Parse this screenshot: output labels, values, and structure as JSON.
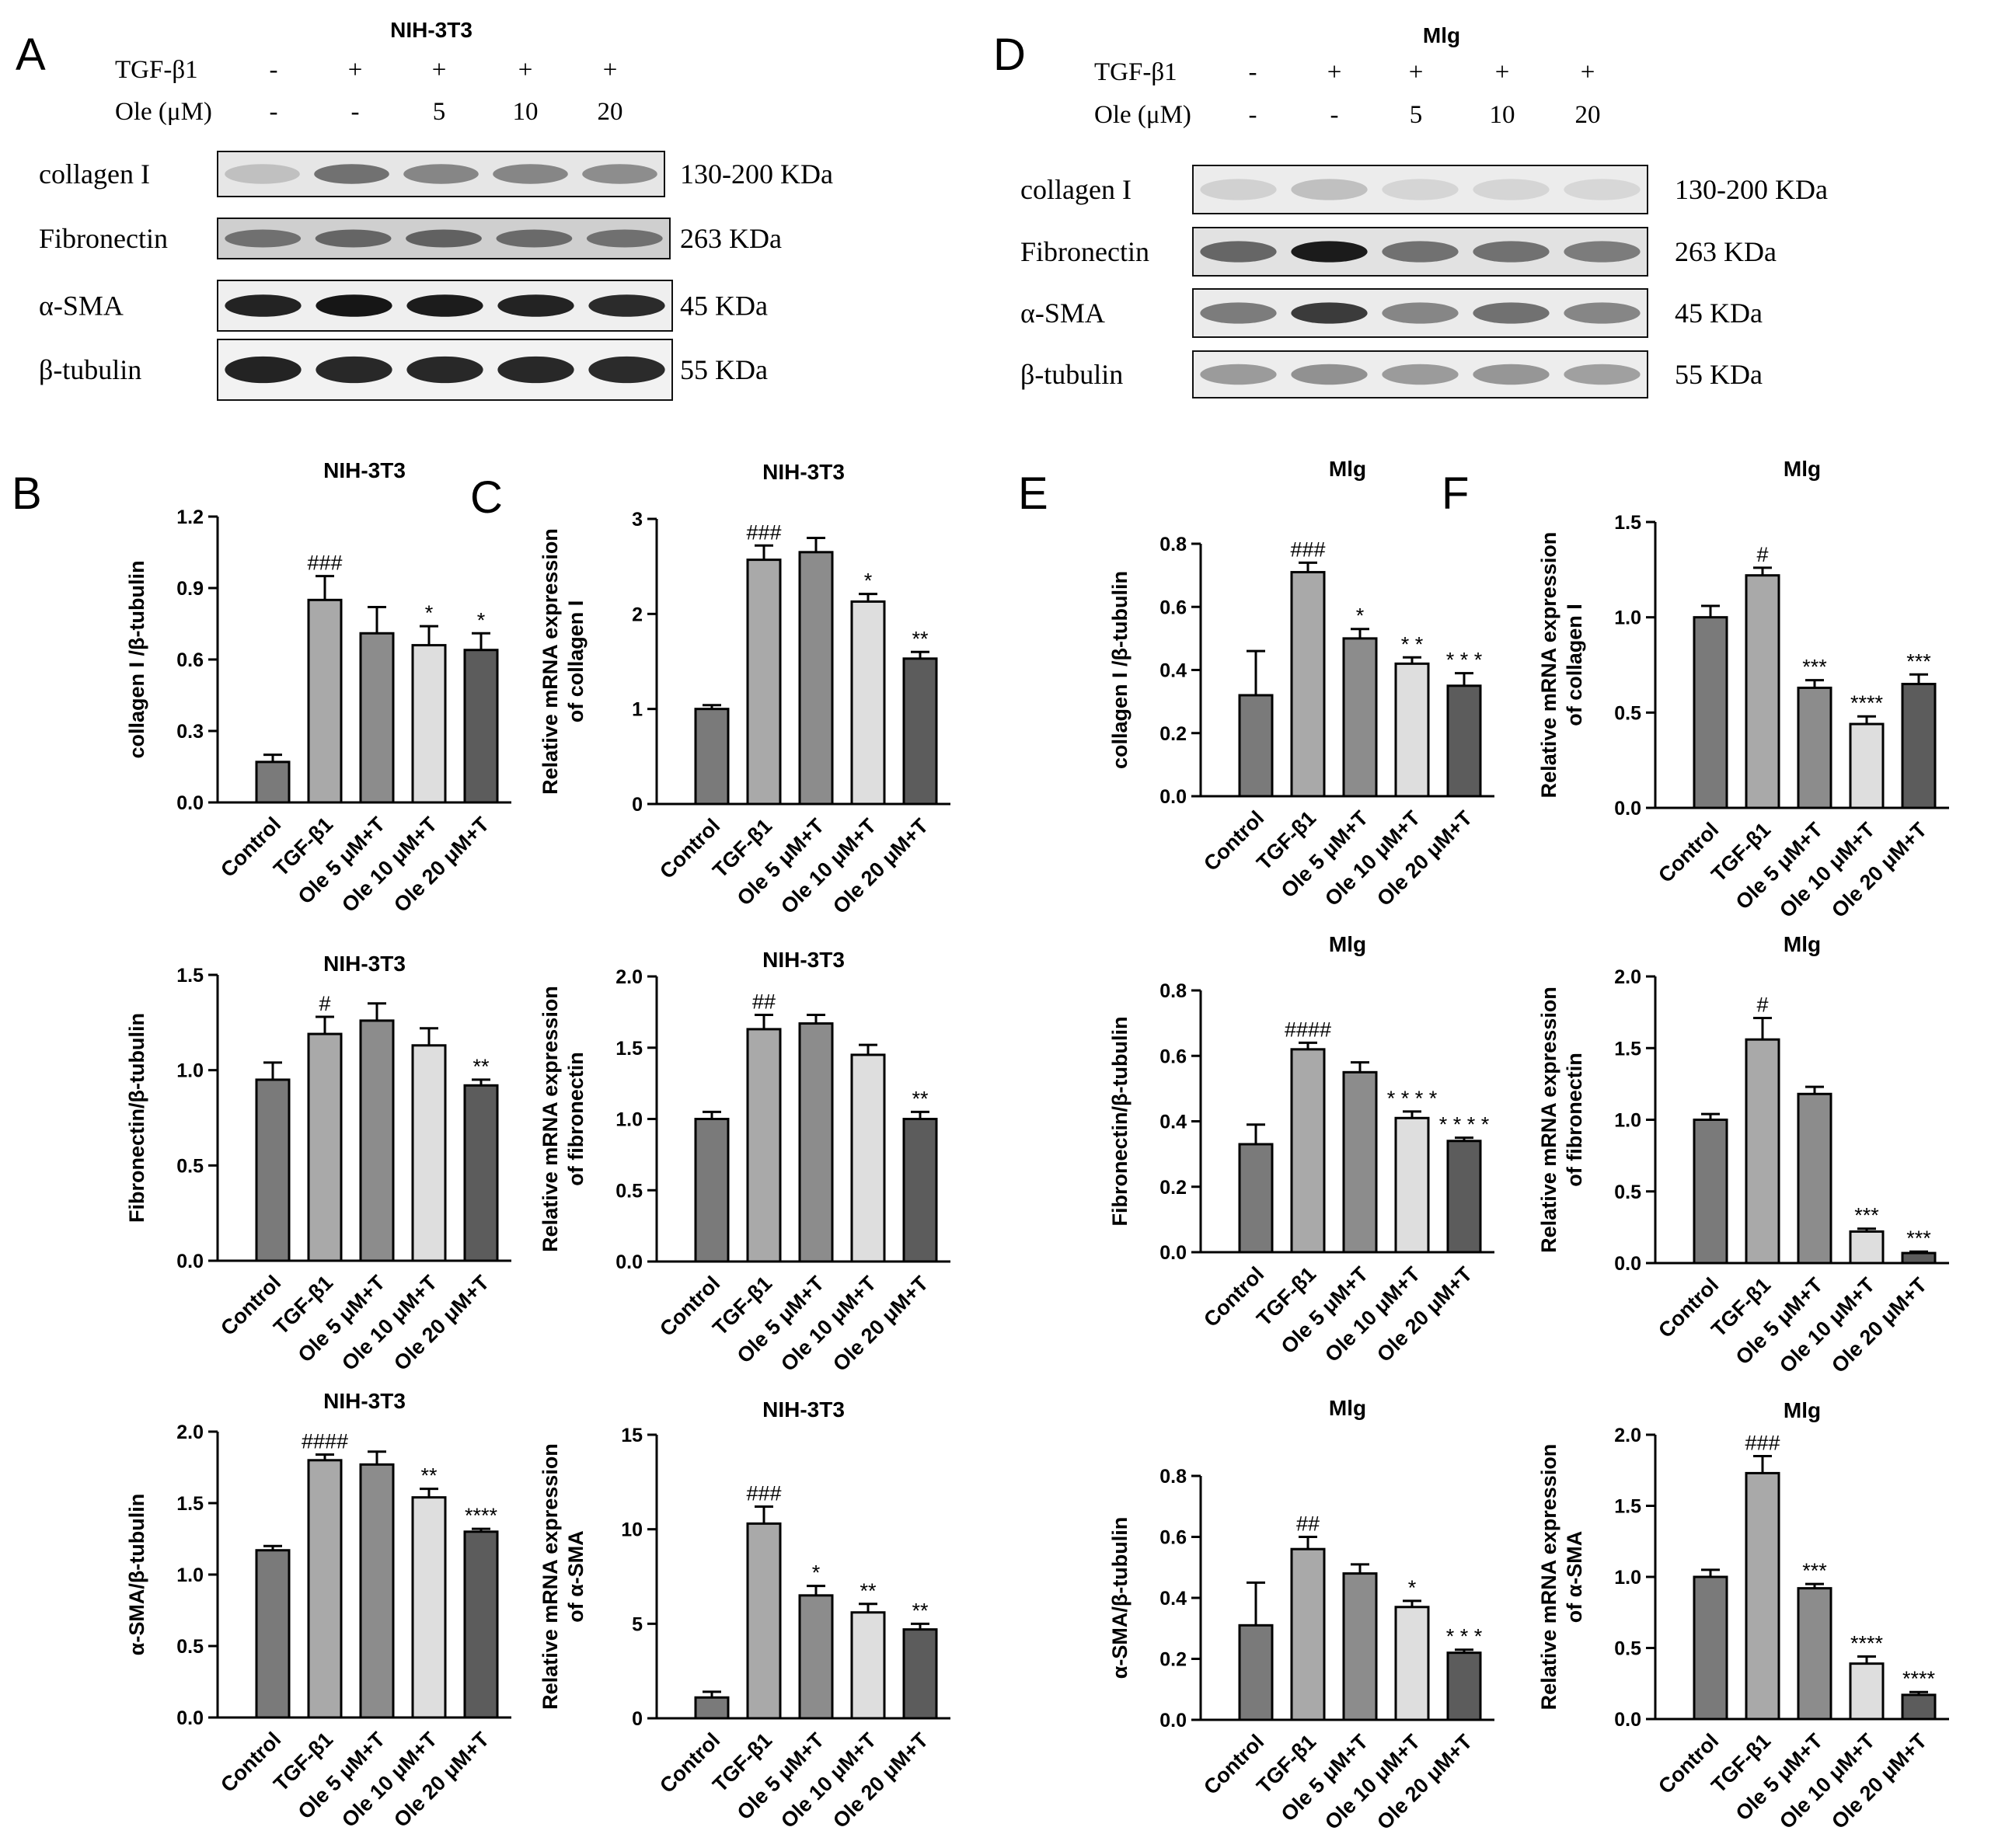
{
  "figure": {
    "panel_letters": [
      "A",
      "D",
      "B",
      "C",
      "E",
      "F"
    ]
  },
  "western_blots": [
    {
      "letter": "A",
      "title": "NIH-3T3",
      "treatment_rows": [
        {
          "label": "TGF-β1",
          "values": [
            "-",
            "+",
            "+",
            "+",
            "+"
          ]
        },
        {
          "label": "Ole (μM)",
          "values": [
            "-",
            "-",
            "5",
            "10",
            "20"
          ]
        }
      ],
      "rows": [
        {
          "protein": "collagen I",
          "size": "130-200 KDa",
          "intensity": [
            0.18,
            0.55,
            0.45,
            0.45,
            0.42
          ],
          "background": "#e6e6e6"
        },
        {
          "protein": "Fibronectin",
          "size": "263 KDa",
          "intensity": [
            0.55,
            0.6,
            0.62,
            0.58,
            0.55
          ],
          "background": "#cfcfcf"
        },
        {
          "protein": "α-SMA",
          "size": "45 KDa",
          "intensity": [
            0.92,
            0.98,
            0.95,
            0.92,
            0.88
          ],
          "background": "#efefef"
        },
        {
          "protein": "β-tubulin",
          "size": "55 KDa",
          "intensity": [
            0.92,
            0.9,
            0.9,
            0.9,
            0.88
          ],
          "background": "#f2f2f2"
        }
      ]
    },
    {
      "letter": "D",
      "title": "Mlg",
      "treatment_rows": [
        {
          "label": "TGF-β1",
          "values": [
            "-",
            "+",
            "+",
            "+",
            "+"
          ]
        },
        {
          "label": "Ole (μM)",
          "values": [
            "-",
            "-",
            "5",
            "10",
            "20"
          ]
        }
      ],
      "rows": [
        {
          "protein": "collagen I",
          "size": "130-200 KDa",
          "intensity": [
            0.1,
            0.18,
            0.08,
            0.08,
            0.07
          ],
          "background": "#ececec"
        },
        {
          "protein": "Fibronectin",
          "size": "263 KDa",
          "intensity": [
            0.6,
            0.95,
            0.55,
            0.55,
            0.5
          ],
          "background": "#e2e2e2"
        },
        {
          "protein": "α-SMA",
          "size": "45 KDa",
          "intensity": [
            0.5,
            0.8,
            0.45,
            0.55,
            0.45
          ],
          "background": "#ebebeb"
        },
        {
          "protein": "β-tubulin",
          "size": "55 KDa",
          "intensity": [
            0.35,
            0.4,
            0.35,
            0.38,
            0.33
          ],
          "background": "#ededed"
        }
      ]
    }
  ],
  "bar_colors": [
    "#7a7a7a",
    "#a9a9a9",
    "#8c8c8c",
    "#dedede",
    "#5c5c5c"
  ],
  "chart_data": [
    {
      "type": "bar",
      "panel_letter": "B",
      "title": "NIH-3T3",
      "ylabel": [
        "collagen I /β-tubulin"
      ],
      "categories": [
        "Control",
        "TGF-β1",
        "Ole 5 μM+T",
        "Ole 10 μM+T",
        "Ole 20 μM+T"
      ],
      "values": [
        0.17,
        0.85,
        0.71,
        0.66,
        0.64
      ],
      "errors": [
        0.03,
        0.1,
        0.11,
        0.08,
        0.07
      ],
      "annotations": [
        "",
        "###",
        "",
        "*",
        "*"
      ],
      "ylim": [
        0,
        1.2
      ],
      "yticks": [
        "0.0",
        "0.3",
        "0.6",
        "0.9",
        "1.2"
      ]
    },
    {
      "type": "bar",
      "panel_letter": "C",
      "title": "NIH-3T3",
      "ylabel": [
        "Relative mRNA expression",
        "of collagen I"
      ],
      "categories": [
        "Control",
        "TGF-β1",
        "Ole 5 μM+T",
        "Ole 10 μM+T",
        "Ole 20 μM+T"
      ],
      "values": [
        1.0,
        2.57,
        2.65,
        2.13,
        1.53
      ],
      "errors": [
        0.04,
        0.15,
        0.15,
        0.08,
        0.07
      ],
      "annotations": [
        "",
        "###",
        "",
        "*",
        "**"
      ],
      "ylim": [
        0,
        3
      ],
      "yticks": [
        "0",
        "1",
        "2",
        "3"
      ]
    },
    {
      "type": "bar",
      "panel_letter": "E",
      "title": "Mlg",
      "ylabel": [
        "collagen I /β-tubulin"
      ],
      "categories": [
        "Control",
        "TGF-β1",
        "Ole 5 μM+T",
        "Ole 10 μM+T",
        "Ole 20 μM+T"
      ],
      "values": [
        0.32,
        0.71,
        0.5,
        0.42,
        0.35
      ],
      "errors": [
        0.14,
        0.03,
        0.03,
        0.02,
        0.04
      ],
      "annotations": [
        "",
        "###",
        "*",
        "* *",
        "* * *"
      ],
      "ylim": [
        0,
        0.8
      ],
      "yticks": [
        "0.0",
        "0.2",
        "0.4",
        "0.6",
        "0.8"
      ]
    },
    {
      "type": "bar",
      "panel_letter": "F",
      "title": "Mlg",
      "ylabel": [
        "Relative mRNA expression",
        "of collagen I"
      ],
      "categories": [
        "Control",
        "TGF-β1",
        "Ole 5 μM+T",
        "Ole 10 μM+T",
        "Ole 20 μM+T"
      ],
      "values": [
        1.0,
        1.22,
        0.63,
        0.44,
        0.65
      ],
      "errors": [
        0.06,
        0.04,
        0.04,
        0.04,
        0.05
      ],
      "annotations": [
        "",
        "#",
        "***",
        "****",
        "***"
      ],
      "ylim": [
        0,
        1.5
      ],
      "yticks": [
        "0.0",
        "0.5",
        "1.0",
        "1.5"
      ]
    },
    {
      "type": "bar",
      "panel_letter": "",
      "title": "NIH-3T3",
      "ylabel": [
        "Fibronectin/β-tubulin"
      ],
      "categories": [
        "Control",
        "TGF-β1",
        "Ole 5 μM+T",
        "Ole 10 μM+T",
        "Ole 20 μM+T"
      ],
      "values": [
        0.95,
        1.19,
        1.26,
        1.13,
        0.92
      ],
      "errors": [
        0.09,
        0.09,
        0.09,
        0.09,
        0.03
      ],
      "annotations": [
        "",
        "#",
        "",
        "",
        "**"
      ],
      "ylim": [
        0,
        1.5
      ],
      "yticks": [
        "0.0",
        "0.5",
        "1.0",
        "1.5"
      ]
    },
    {
      "type": "bar",
      "panel_letter": "",
      "title": "NIH-3T3",
      "ylabel": [
        "Relative mRNA expression",
        "of fibronectin"
      ],
      "categories": [
        "Control",
        "TGF-β1",
        "Ole 5 μM+T",
        "Ole 10 μM+T",
        "Ole 20 μM+T"
      ],
      "values": [
        1.0,
        1.63,
        1.67,
        1.45,
        1.0
      ],
      "errors": [
        0.05,
        0.1,
        0.06,
        0.07,
        0.05
      ],
      "annotations": [
        "",
        "##",
        "",
        "",
        "**"
      ],
      "ylim": [
        0,
        2.0
      ],
      "yticks": [
        "0.0",
        "0.5",
        "1.0",
        "1.5",
        "2.0"
      ]
    },
    {
      "type": "bar",
      "panel_letter": "",
      "title": "Mlg",
      "ylabel": [
        "Fibronectin/β-tubulin"
      ],
      "categories": [
        "Control",
        "TGF-β1",
        "Ole 5 μM+T",
        "Ole 10 μM+T",
        "Ole 20 μM+T"
      ],
      "values": [
        0.33,
        0.62,
        0.55,
        0.41,
        0.34
      ],
      "errors": [
        0.06,
        0.02,
        0.03,
        0.02,
        0.01
      ],
      "annotations": [
        "",
        "####",
        "",
        "* * * *",
        "* * * *"
      ],
      "ylim": [
        0,
        0.8
      ],
      "yticks": [
        "0.0",
        "0.2",
        "0.4",
        "0.6",
        "0.8"
      ]
    },
    {
      "type": "bar",
      "panel_letter": "",
      "title": "Mlg",
      "ylabel": [
        "Relative mRNA expression",
        "of fibronectin"
      ],
      "categories": [
        "Control",
        "TGF-β1",
        "Ole 5 μM+T",
        "Ole 10 μM+T",
        "Ole 20 μM+T"
      ],
      "values": [
        1.0,
        1.56,
        1.18,
        0.22,
        0.07
      ],
      "errors": [
        0.04,
        0.15,
        0.05,
        0.02,
        0.01
      ],
      "annotations": [
        "",
        "#",
        "",
        "***",
        "***"
      ],
      "ylim": [
        0,
        2.0
      ],
      "yticks": [
        "0.0",
        "0.5",
        "1.0",
        "1.5",
        "2.0"
      ]
    },
    {
      "type": "bar",
      "panel_letter": "",
      "title": "NIH-3T3",
      "ylabel": [
        "α-SMA/β-tubulin"
      ],
      "categories": [
        "Control",
        "TGF-β1",
        "Ole 5 μM+T",
        "Ole 10 μM+T",
        "Ole 20 μM+T"
      ],
      "values": [
        1.17,
        1.8,
        1.77,
        1.54,
        1.3
      ],
      "errors": [
        0.03,
        0.04,
        0.09,
        0.06,
        0.02
      ],
      "annotations": [
        "",
        "####",
        "",
        "**",
        "****"
      ],
      "ylim": [
        0,
        2.0
      ],
      "yticks": [
        "0.0",
        "0.5",
        "1.0",
        "1.5",
        "2.0"
      ]
    },
    {
      "type": "bar",
      "panel_letter": "",
      "title": "NIH-3T3",
      "ylabel": [
        "Relative mRNA expression",
        "of α-SMA"
      ],
      "categories": [
        "Control",
        "TGF-β1",
        "Ole 5 μM+T",
        "Ole 10 μM+T",
        "Ole 20 μM+T"
      ],
      "values": [
        1.1,
        10.3,
        6.5,
        5.6,
        4.7
      ],
      "errors": [
        0.3,
        0.9,
        0.5,
        0.45,
        0.3
      ],
      "annotations": [
        "",
        "###",
        "*",
        "**",
        "**"
      ],
      "ylim": [
        0,
        15
      ],
      "yticks": [
        "0",
        "5",
        "10",
        "15"
      ]
    },
    {
      "type": "bar",
      "panel_letter": "",
      "title": "Mlg",
      "ylabel": [
        "α-SMA/β-tubulin"
      ],
      "categories": [
        "Control",
        "TGF-β1",
        "Ole 5 μM+T",
        "Ole 10 μM+T",
        "Ole 20 μM+T"
      ],
      "values": [
        0.31,
        0.56,
        0.48,
        0.37,
        0.22
      ],
      "errors": [
        0.14,
        0.04,
        0.03,
        0.02,
        0.01
      ],
      "annotations": [
        "",
        "##",
        "",
        "*",
        "* * *"
      ],
      "ylim": [
        0,
        0.8
      ],
      "yticks": [
        "0.0",
        "0.2",
        "0.4",
        "0.6",
        "0.8"
      ]
    },
    {
      "type": "bar",
      "panel_letter": "",
      "title": "Mlg",
      "ylabel": [
        "Relative mRNA expression",
        "of α-SMA"
      ],
      "categories": [
        "Control",
        "TGF-β1",
        "Ole 5 μM+T",
        "Ole 10 μM+T",
        "Ole 20 μM+T"
      ],
      "values": [
        1.0,
        1.73,
        0.92,
        0.39,
        0.17
      ],
      "errors": [
        0.05,
        0.12,
        0.03,
        0.05,
        0.02
      ],
      "annotations": [
        "",
        "###",
        "***",
        "****",
        "****"
      ],
      "ylim": [
        0,
        2.0
      ],
      "yticks": [
        "0.0",
        "0.5",
        "1.0",
        "1.5",
        "2.0"
      ]
    }
  ]
}
